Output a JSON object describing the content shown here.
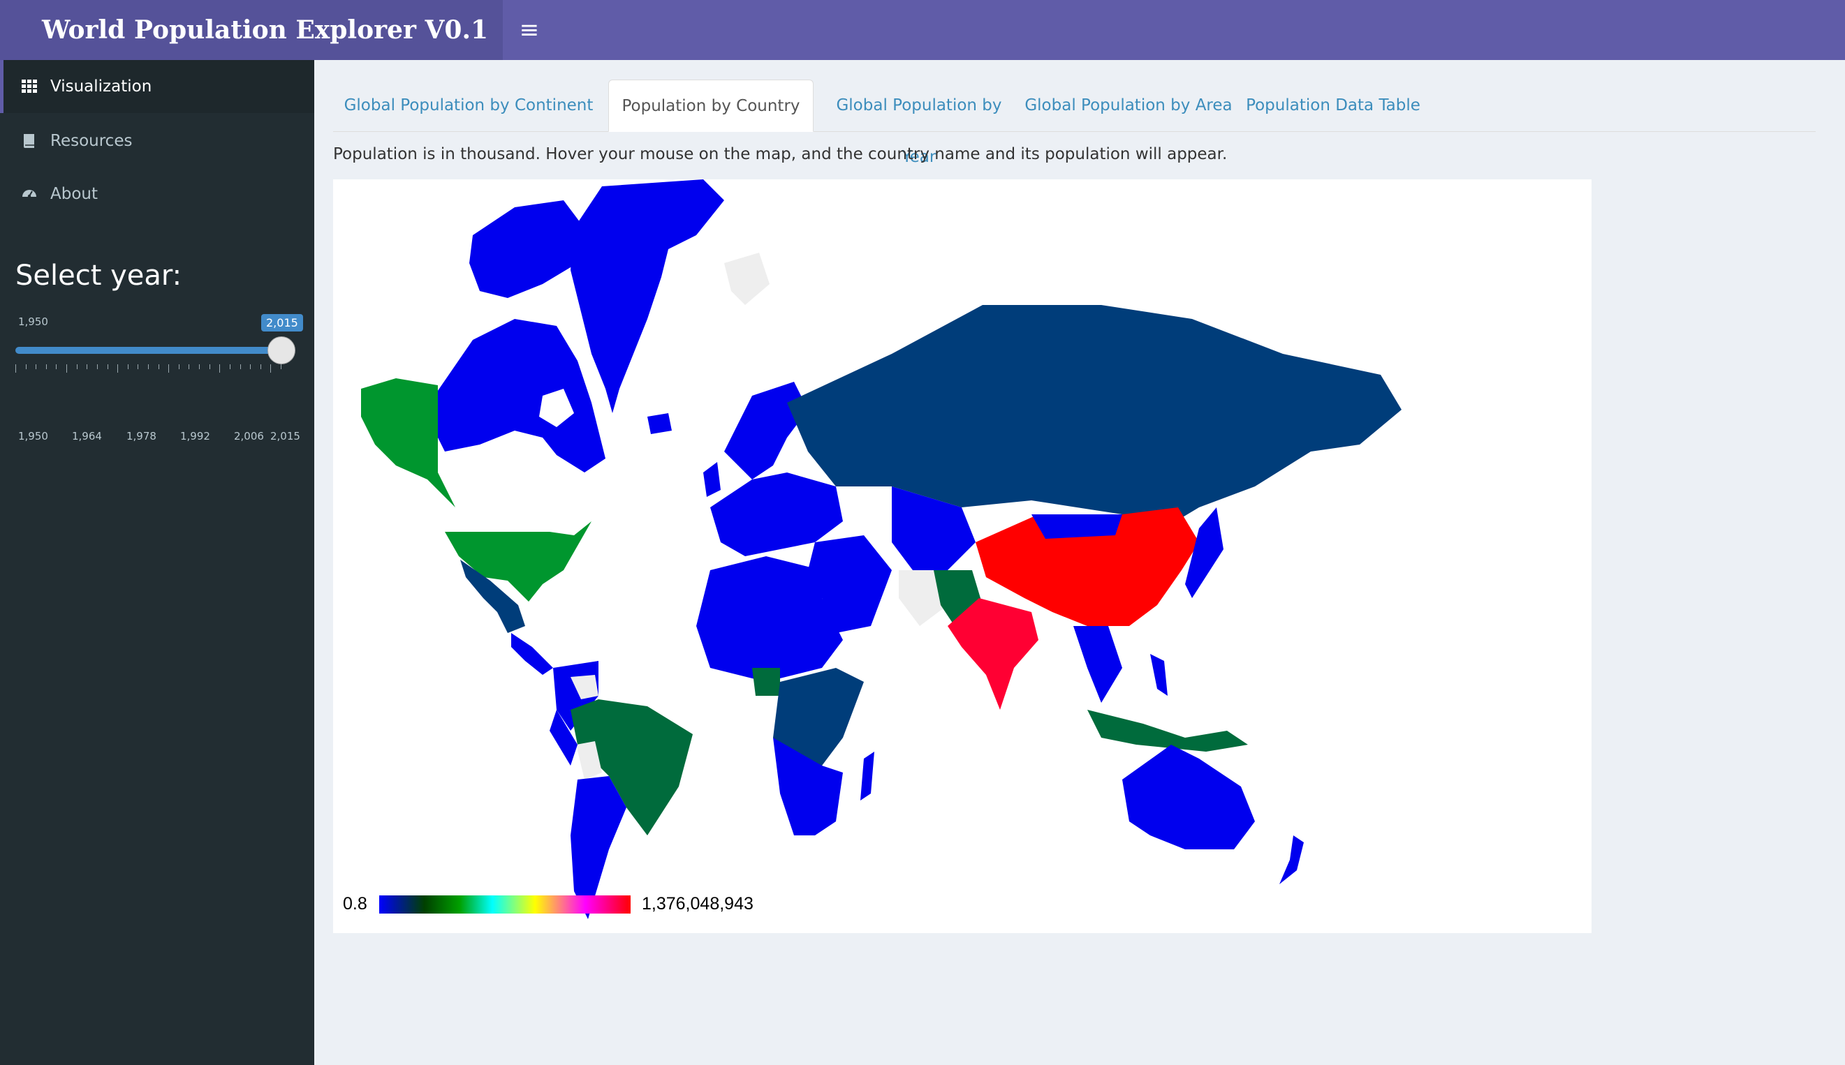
{
  "app": {
    "title": "World Population Explorer V0.1",
    "menu_toggle": "≡"
  },
  "sidebar": {
    "items": [
      {
        "label": "Visualization",
        "icon": "grid-icon",
        "active": true
      },
      {
        "label": "Resources",
        "icon": "book-icon",
        "active": false
      },
      {
        "label": "About",
        "icon": "dashboard-icon",
        "active": false
      }
    ],
    "year_label": "Select year:",
    "slider": {
      "min_label": "1,950",
      "value_label": "2,015",
      "min": 1950,
      "max": 2015,
      "value": 2015,
      "tick_labels": [
        "1,950",
        "1,964",
        "1,978",
        "1,992",
        "2,006",
        "2,015"
      ]
    }
  },
  "tabs": [
    {
      "label": "Global Population by Continent",
      "active": false
    },
    {
      "label": "Population by Country",
      "active": true
    },
    {
      "label": "Global Population by Year",
      "active": false
    },
    {
      "label": "Global Population by Area",
      "active": false
    },
    {
      "label": "Population Data Table",
      "active": false
    }
  ],
  "note": "Population is in thousand. Hover your mouse on the map, and the country name and its population will appear.",
  "map": {
    "legend": {
      "min_label": "0.8",
      "max_label": "1,376,048,943"
    },
    "colors": {
      "low": "#0000ee",
      "navy": "#003d7a",
      "mid_green": "#00962e",
      "dark_green": "#006b3c",
      "high": "#ff0000",
      "high2": "#ff0033",
      "no_data": "#eeeeee"
    }
  }
}
